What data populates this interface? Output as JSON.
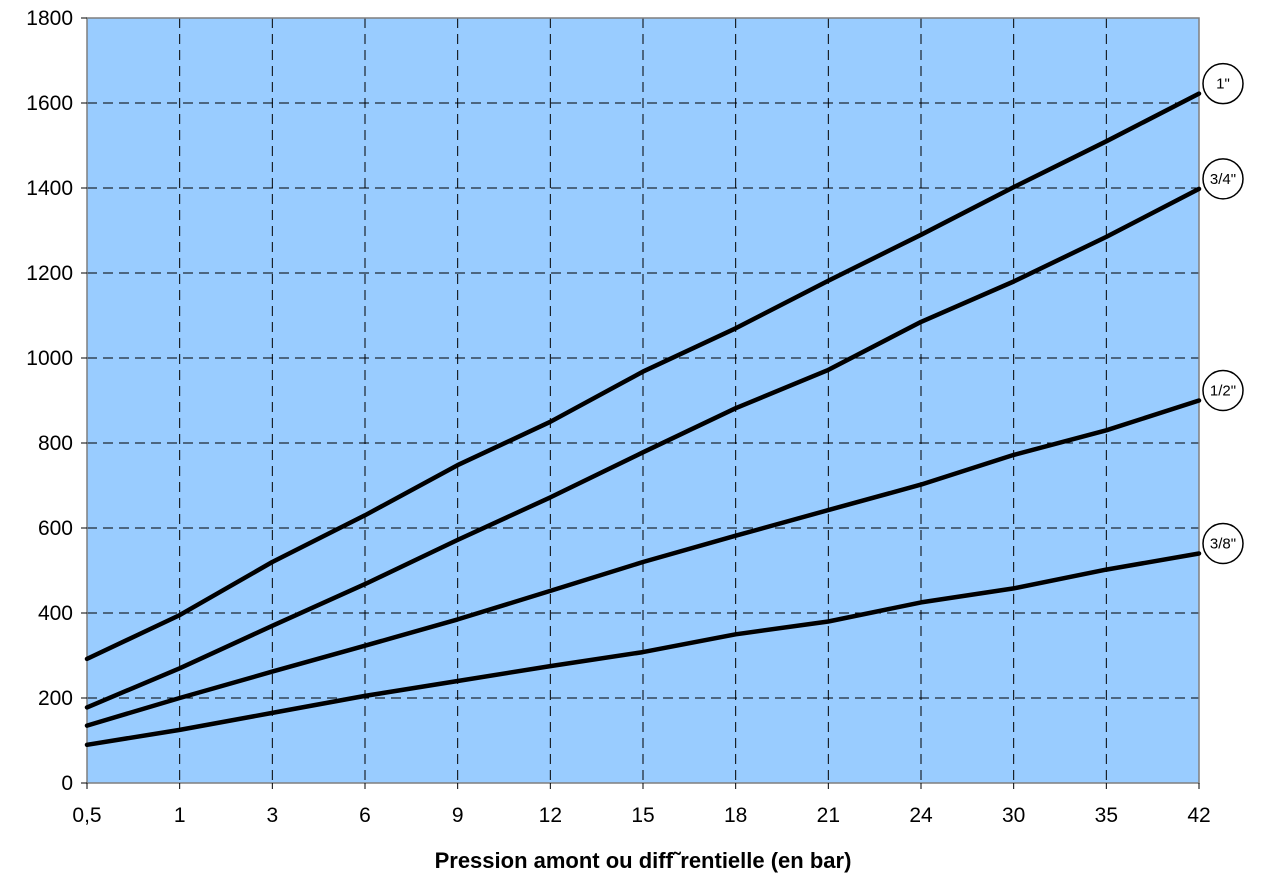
{
  "chart_data": {
    "type": "line",
    "xlabel": "Pression amont ou diff˜rentielle (en bar)",
    "ylabel": "",
    "categories": [
      "0,5",
      "1",
      "3",
      "6",
      "9",
      "12",
      "15",
      "18",
      "21",
      "24",
      "30",
      "35",
      "42"
    ],
    "ylim": [
      0,
      1800
    ],
    "yticks": [
      0,
      200,
      400,
      600,
      800,
      1000,
      1200,
      1400,
      1600,
      1800
    ],
    "grid": true,
    "plot_background": "#99ccff",
    "line_color": "#000000",
    "series": [
      {
        "name": "1\"",
        "values": [
          292,
          395,
          520,
          630,
          748,
          850,
          968,
          1070,
          1182,
          1290,
          1402,
          1510,
          1622
        ]
      },
      {
        "name": "3/4\"",
        "values": [
          178,
          270,
          370,
          468,
          572,
          672,
          778,
          882,
          972,
          1085,
          1180,
          1285,
          1398
        ]
      },
      {
        "name": "1/2\"",
        "values": [
          135,
          200,
          262,
          323,
          385,
          452,
          520,
          582,
          642,
          702,
          772,
          830,
          900
        ]
      },
      {
        "name": "3/8\"",
        "values": [
          90,
          125,
          165,
          205,
          240,
          275,
          308,
          350,
          380,
          425,
          458,
          502,
          540
        ]
      }
    ]
  }
}
